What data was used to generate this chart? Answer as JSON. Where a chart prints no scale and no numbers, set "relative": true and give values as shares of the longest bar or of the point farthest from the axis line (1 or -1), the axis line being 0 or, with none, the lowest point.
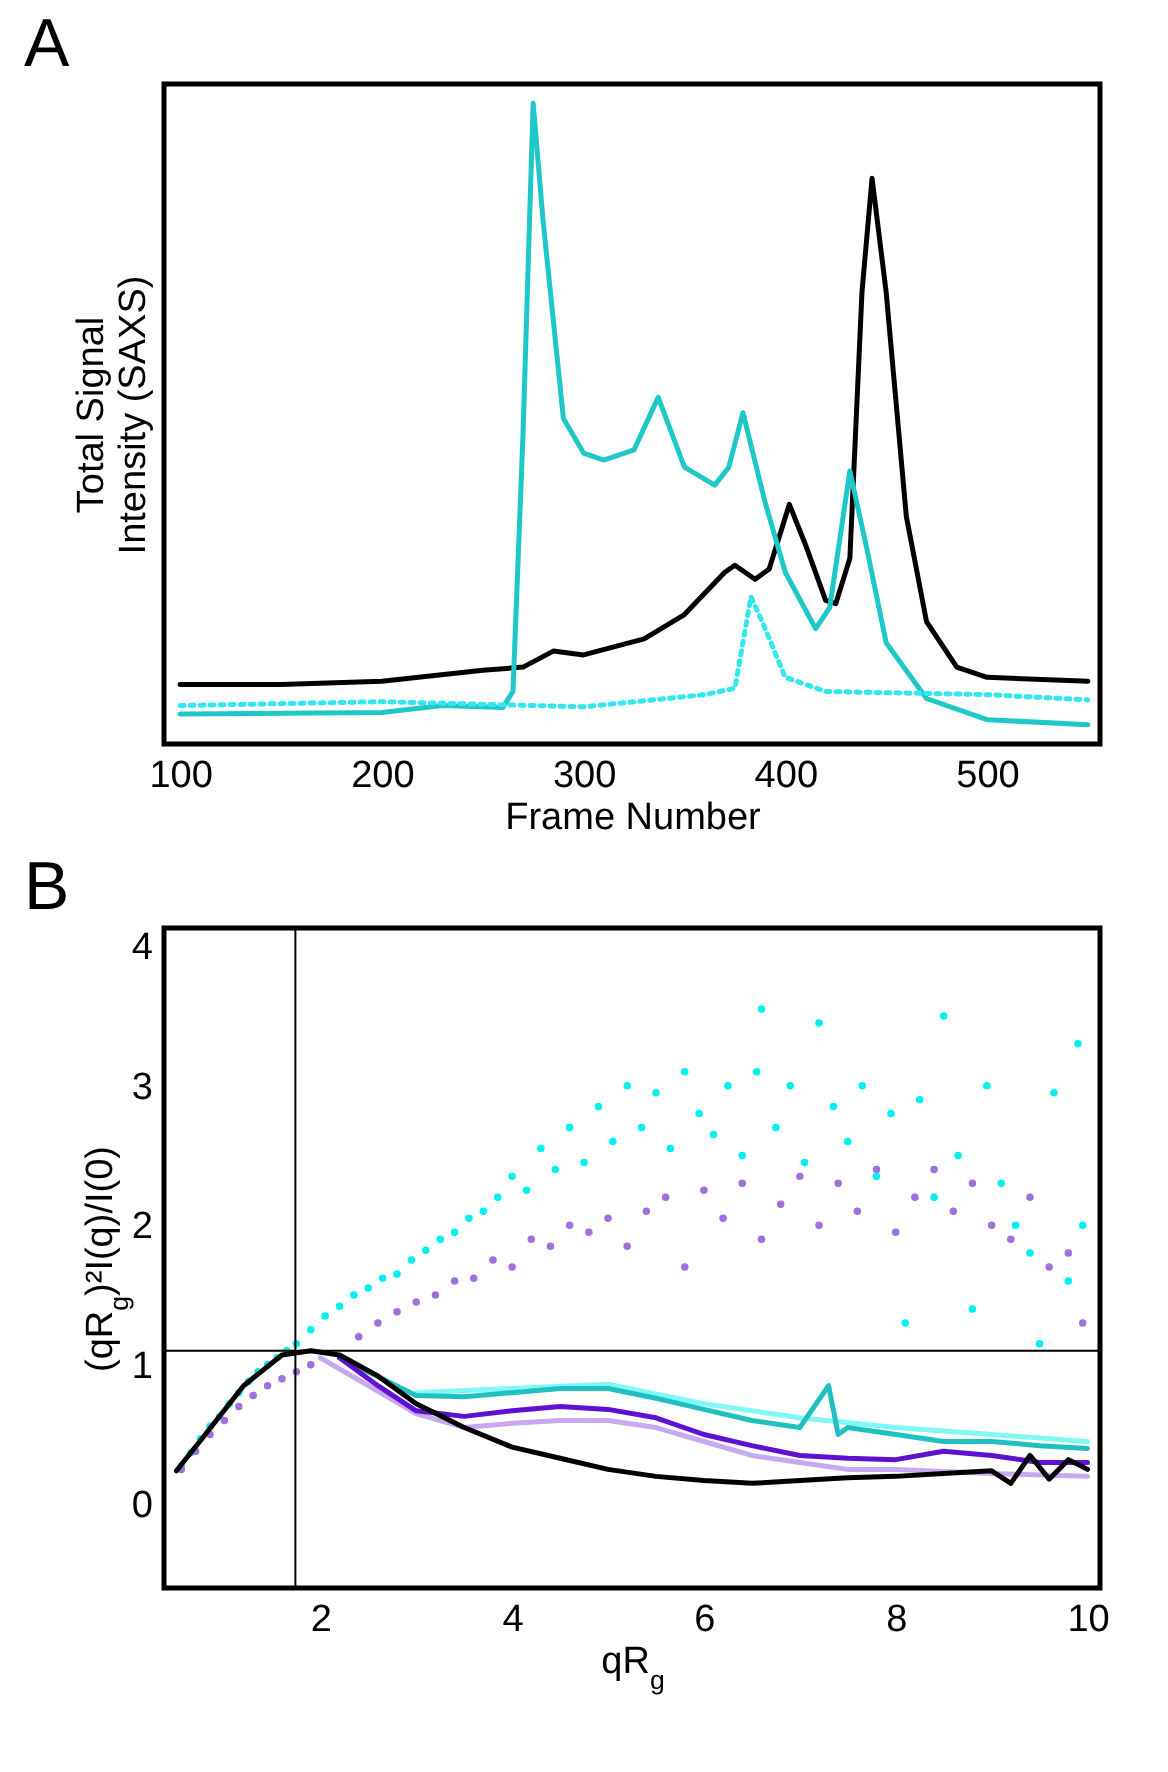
{
  "chart_data": [
    {
      "type": "line",
      "title": "A",
      "xlabel": "Frame Number",
      "ylabel": "Total Signal\nIntensity (SAXS)",
      "relative": true,
      "xlim": [
        92,
        556
      ],
      "xticks": [
        100,
        200,
        300,
        400,
        500
      ],
      "grid": false,
      "series": [
        {
          "color": "#000000",
          "x": [
            100,
            150,
            200,
            250,
            270,
            285,
            300,
            330,
            350,
            370,
            375,
            385,
            392,
            402,
            410,
            420,
            425,
            432,
            438,
            443,
            450,
            460,
            470,
            485,
            500,
            550
          ],
          "values": [
            0.093,
            0.093,
            0.098,
            0.115,
            0.12,
            0.145,
            0.139,
            0.164,
            0.202,
            0.268,
            0.279,
            0.257,
            0.273,
            0.374,
            0.311,
            0.224,
            0.219,
            0.29,
            0.705,
            0.883,
            0.705,
            0.355,
            0.191,
            0.12,
            0.104,
            0.098
          ]
        },
        {
          "color": "#1ec8c8",
          "x": [
            100,
            200,
            230,
            260,
            265,
            270,
            275,
            280,
            290,
            300,
            310,
            325,
            337,
            350,
            365,
            372,
            379,
            390,
            400,
            415,
            422,
            432,
            440,
            450,
            470,
            500,
            550
          ],
          "values": [
            0.047,
            0.049,
            0.06,
            0.057,
            0.082,
            0.486,
            1,
            0.814,
            0.508,
            0.454,
            0.443,
            0.459,
            0.541,
            0.432,
            0.404,
            0.432,
            0.517,
            0.377,
            0.268,
            0.18,
            0.213,
            0.426,
            0.311,
            0.158,
            0.071,
            0.038,
            0.03
          ]
        },
        {
          "color": "#33e6f0",
          "line_style": "dotted",
          "x": [
            100,
            200,
            300,
            360,
            375,
            383,
            390,
            400,
            420,
            500,
            550
          ],
          "values": [
            0.06,
            0.066,
            0.058,
            0.077,
            0.087,
            0.23,
            0.18,
            0.104,
            0.082,
            0.077,
            0.069
          ]
        }
      ]
    },
    {
      "type": "line",
      "title": "B",
      "xlabel": "qR$_{g}$",
      "ylabel": "(qR$_{g}$)²I(q)/I(0)",
      "xlim": [
        0.37,
        10.13
      ],
      "xticks": [
        2,
        4,
        6,
        8,
        10
      ],
      "ylim": [
        -0.6,
        4.13
      ],
      "yticks": [
        0,
        1,
        2,
        3,
        4
      ],
      "grid": false,
      "ref_lines": [
        {
          "axis": "x",
          "value": 1.74,
          "color": "#000000"
        },
        {
          "axis": "y",
          "value": 1.1,
          "color": "#000000"
        }
      ],
      "series": [
        {
          "type": "scatter",
          "marker": "circle",
          "color": "#00f0f0",
          "x": [
            0.55,
            0.65,
            0.75,
            0.85,
            0.95,
            1.05,
            1.15,
            1.25,
            1.35,
            1.45,
            1.55,
            1.65,
            1.75,
            1.9,
            2.05,
            2.2,
            2.35,
            2.5,
            2.65,
            2.8,
            2.95,
            3.1,
            3.25,
            3.4,
            3.55,
            3.7,
            3.85,
            4.0,
            4.15,
            4.3,
            4.45,
            4.6,
            4.75,
            4.9,
            5.05,
            5.2,
            5.35,
            5.5,
            5.65,
            5.8,
            5.95,
            6.1,
            6.25,
            6.4,
            6.55,
            6.6,
            6.75,
            6.9,
            7.05,
            7.2,
            7.35,
            7.5,
            7.65,
            7.8,
            7.95,
            8.1,
            8.25,
            8.4,
            8.5,
            8.65,
            8.8,
            8.95,
            9.1,
            9.25,
            9.4,
            9.5,
            9.65,
            9.8,
            9.9,
            9.95
          ],
          "values": [
            0.27,
            0.37,
            0.47,
            0.56,
            0.63,
            0.72,
            0.8,
            0.88,
            0.95,
            1.0,
            1.05,
            1.1,
            1.15,
            1.25,
            1.35,
            1.42,
            1.5,
            1.55,
            1.62,
            1.65,
            1.75,
            1.82,
            1.9,
            1.95,
            2.05,
            2.1,
            2.2,
            2.35,
            2.25,
            2.55,
            2.4,
            2.7,
            2.45,
            2.85,
            2.6,
            3.0,
            2.7,
            2.95,
            2.55,
            3.1,
            2.8,
            2.65,
            3.0,
            2.5,
            3.1,
            3.55,
            2.7,
            3.0,
            2.45,
            3.45,
            2.85,
            2.6,
            3.0,
            2.35,
            2.8,
            1.3,
            2.9,
            2.2,
            3.5,
            2.5,
            1.4,
            3.0,
            2.3,
            2.0,
            1.8,
            1.15,
            2.95,
            1.6,
            3.3,
            2.0
          ]
        },
        {
          "type": "scatter",
          "marker": "circle",
          "color": "#a070e0",
          "x": [
            0.55,
            0.7,
            0.85,
            1.0,
            1.15,
            1.3,
            1.45,
            1.6,
            1.75,
            1.9,
            2.05,
            2.2,
            2.4,
            2.6,
            2.8,
            3.0,
            3.2,
            3.4,
            3.6,
            3.8,
            4.0,
            4.2,
            4.4,
            4.6,
            4.8,
            5.0,
            5.2,
            5.4,
            5.6,
            5.8,
            6.0,
            6.2,
            6.4,
            6.6,
            6.8,
            7.0,
            7.2,
            7.4,
            7.6,
            7.8,
            8.0,
            8.2,
            8.4,
            8.6,
            8.8,
            9.0,
            9.2,
            9.4,
            9.6,
            9.8,
            9.95
          ],
          "values": [
            0.25,
            0.38,
            0.5,
            0.6,
            0.7,
            0.78,
            0.85,
            0.9,
            0.95,
            1.0,
            null,
            null,
            1.2,
            1.3,
            1.38,
            1.45,
            1.5,
            1.6,
            1.62,
            1.75,
            1.7,
            1.9,
            1.85,
            2.0,
            1.95,
            2.05,
            1.85,
            2.1,
            2.2,
            1.7,
            2.25,
            2.05,
            2.3,
            1.9,
            2.15,
            2.35,
            2.0,
            2.3,
            2.1,
            2.4,
            1.95,
            2.2,
            2.4,
            2.1,
            2.3,
            2.0,
            1.9,
            2.2,
            1.7,
            1.8,
            1.3
          ]
        },
        {
          "color": "#80f8f8",
          "x": [
            3,
            4,
            5,
            6,
            7,
            8,
            9,
            10
          ],
          "values": [
            0.8,
            0.83,
            0.86,
            0.72,
            0.62,
            0.55,
            0.5,
            0.45
          ]
        },
        {
          "color": "#20c0c0",
          "x": [
            2.2,
            3,
            3.5,
            4,
            4.5,
            5,
            5.5,
            6,
            6.5,
            7,
            7.3,
            7.4,
            7.5,
            8,
            8.5,
            9,
            9.5,
            10
          ],
          "values": [
            1.05,
            0.78,
            0.77,
            0.8,
            0.83,
            0.83,
            0.76,
            0.68,
            0.6,
            0.55,
            0.85,
            0.5,
            0.55,
            0.5,
            0.45,
            0.45,
            0.42,
            0.4
          ]
        },
        {
          "color": "#c8a8f0",
          "x": [
            2.0,
            2.5,
            3,
            3.5,
            4,
            4.5,
            5,
            5.5,
            6,
            6.5,
            7,
            7.5,
            8,
            9,
            10
          ],
          "values": [
            1.05,
            0.85,
            0.65,
            0.55,
            0.58,
            0.6,
            0.6,
            0.55,
            0.45,
            0.35,
            0.3,
            0.25,
            0.25,
            0.22,
            0.2
          ]
        },
        {
          "color": "#6010d0",
          "x": [
            2.2,
            2.6,
            3,
            3.5,
            4,
            4.5,
            5,
            5.5,
            6,
            6.5,
            7,
            7.5,
            8,
            8.5,
            9,
            9.5,
            10
          ],
          "values": [
            1.05,
            0.85,
            0.67,
            0.63,
            0.67,
            0.7,
            0.68,
            0.62,
            0.5,
            0.42,
            0.35,
            0.33,
            0.32,
            0.38,
            0.35,
            0.3,
            0.3
          ]
        },
        {
          "color": "#000000",
          "x": [
            0.5,
            0.8,
            1.2,
            1.6,
            1.9,
            2.2,
            2.6,
            3,
            3.5,
            4,
            4.5,
            5,
            5.5,
            6,
            6.5,
            7,
            7.5,
            8,
            8.5,
            9,
            9.2,
            9.4,
            9.6,
            9.8,
            10
          ],
          "values": [
            0.24,
            0.5,
            0.85,
            1.07,
            1.1,
            1.07,
            0.92,
            0.72,
            0.55,
            0.41,
            0.33,
            0.25,
            0.2,
            0.17,
            0.15,
            0.17,
            0.19,
            0.2,
            0.22,
            0.24,
            0.15,
            0.35,
            0.18,
            0.32,
            0.25
          ]
        }
      ]
    }
  ]
}
